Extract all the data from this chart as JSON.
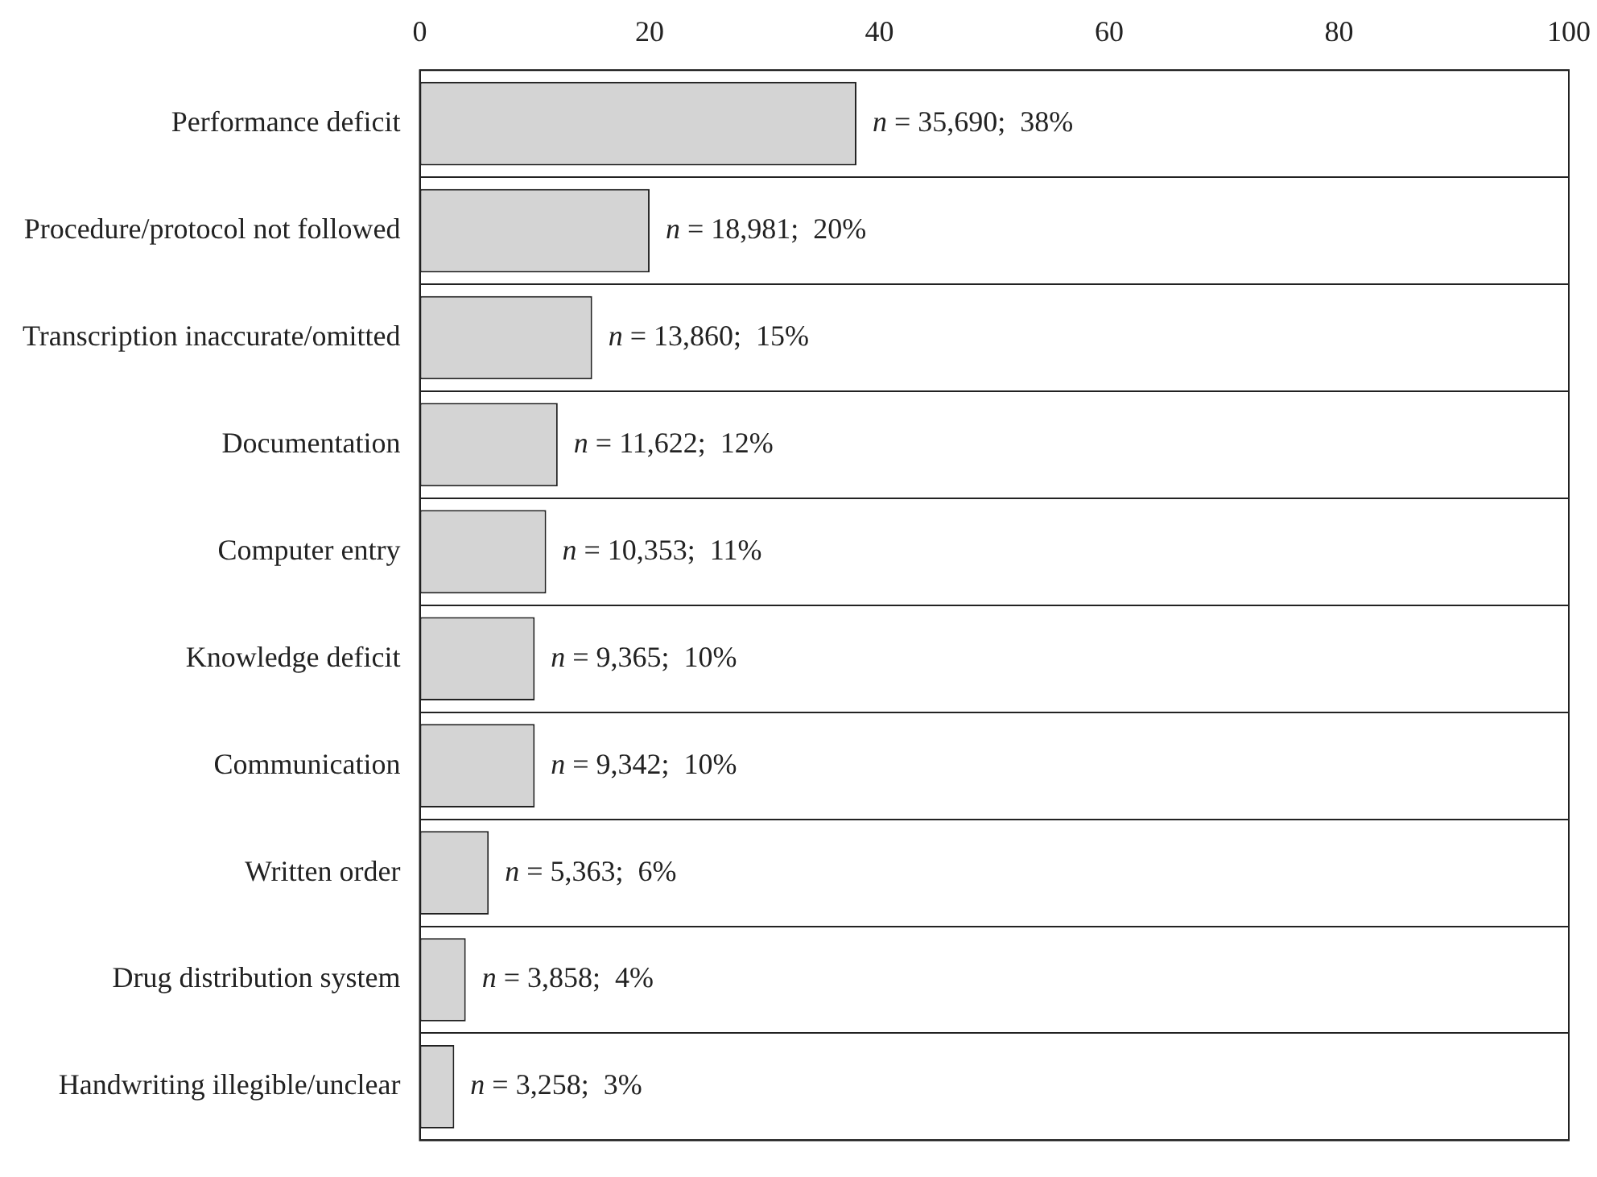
{
  "chart_data": {
    "type": "bar",
    "orientation": "horizontal",
    "categories": [
      "Performance deficit",
      "Procedure/protocol not followed",
      "Transcription inaccurate/omitted",
      "Documentation",
      "Computer entry",
      "Knowledge deficit",
      "Communication",
      "Written order",
      "Drug distribution system",
      "Handwriting illegible/unclear"
    ],
    "values": [
      38,
      20,
      15,
      12,
      11,
      10,
      10,
      6,
      4,
      3
    ],
    "value_labels": [
      "n = 35,690;  38%",
      "n = 18,981;  20%",
      "n = 13,860;  15%",
      "n = 11,622;  12%",
      "n = 10,353;  11%",
      "n = 9,365;  10%",
      "n = 9,342;  10%",
      "n = 5,363;  6%",
      "n = 3,858;  4%",
      "n = 3,258;  3%"
    ],
    "color": "#d4d4d4",
    "xlim": [
      0,
      100
    ],
    "xticks": [
      0,
      20,
      40,
      60,
      80,
      100
    ],
    "grid": "y",
    "legend": false
  }
}
